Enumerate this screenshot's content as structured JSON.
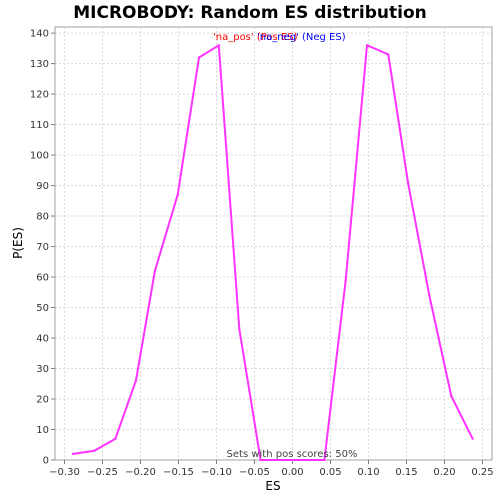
{
  "chart_data": {
    "type": "line",
    "title": "MICROBODY: Random ES distribution",
    "xlabel": "ES",
    "ylabel": "P(ES)",
    "xlim": [
      -0.3125,
      0.2625
    ],
    "ylim": [
      0,
      142
    ],
    "xticks": [
      -0.3,
      -0.25,
      -0.2,
      -0.15,
      -0.1,
      -0.05,
      0.0,
      0.05,
      0.1,
      0.15,
      0.2,
      0.25
    ],
    "xtick_labels": [
      "−0.30",
      "−0.25",
      "−0.20",
      "−0.15",
      "−0.10",
      "−0.05",
      "0.00",
      "0.05",
      "0.10",
      "0.15",
      "0.20",
      "0.25"
    ],
    "yticks": [
      0,
      10,
      20,
      30,
      40,
      50,
      60,
      70,
      80,
      90,
      100,
      110,
      120,
      130,
      140
    ],
    "ytick_labels": [
      "0",
      "10",
      "20",
      "30",
      "40",
      "50",
      "60",
      "70",
      "80",
      "90",
      "100",
      "110",
      "120",
      "130",
      "140"
    ],
    "grid": true,
    "legend": [
      {
        "label": "'na_pos' (Pos ES)",
        "color": "#ff0000"
      },
      {
        "label": "'na_neg' (Neg ES)",
        "color": "#0000ff"
      }
    ],
    "annotation": "Sets with pos scores: 50%",
    "series": [
      {
        "name": "Random ES",
        "color": "#ff33ff",
        "x": [
          -0.289,
          -0.261,
          -0.233,
          -0.206,
          -0.181,
          -0.151,
          -0.123,
          -0.097,
          -0.07,
          -0.042,
          0.042,
          0.07,
          0.098,
          0.126,
          0.152,
          0.18,
          0.209,
          0.237
        ],
        "y": [
          2,
          3,
          7,
          26,
          62,
          87,
          132,
          136,
          43,
          0,
          0,
          59,
          136,
          133,
          91,
          54,
          21,
          7
        ]
      }
    ]
  }
}
